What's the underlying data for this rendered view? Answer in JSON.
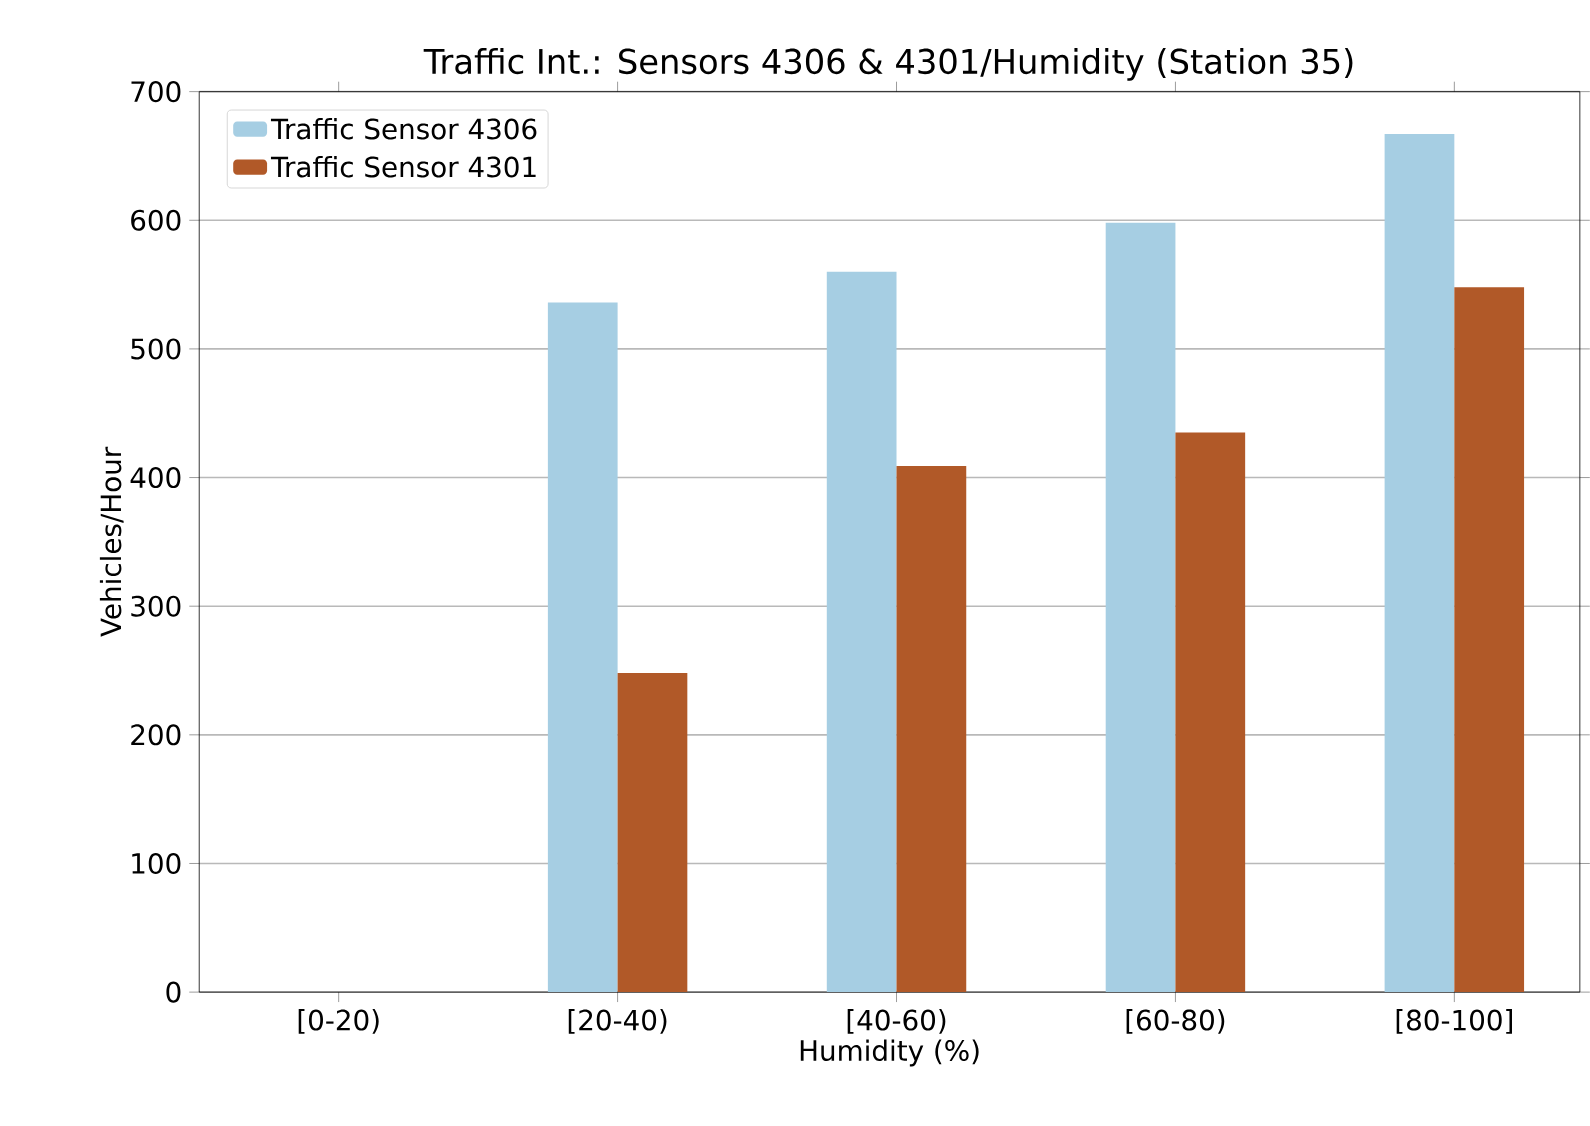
{
  "chart_data": {
    "type": "bar",
    "title": "Traffic Int.: Sensors 4306 & 4301/Humidity (Station 35)",
    "xlabel": "Humidity (%)",
    "ylabel": "Vehicles/Hour",
    "categories": [
      "[0-20)",
      "[20-40)",
      "[40-60)",
      "[60-80)",
      "[80-100]"
    ],
    "series": [
      {
        "name": "Traffic Sensor 4306",
        "color": "#a6cee3",
        "values": [
          null,
          536,
          560,
          598,
          667
        ]
      },
      {
        "name": "Traffic Sensor 4301",
        "color": "#b15928",
        "values": [
          null,
          248,
          409,
          435,
          548
        ]
      }
    ],
    "ylim": [
      0,
      700
    ],
    "yticks": [
      0,
      100,
      200,
      300,
      400,
      500,
      600,
      700
    ],
    "grid": "y",
    "legend": "top left"
  }
}
